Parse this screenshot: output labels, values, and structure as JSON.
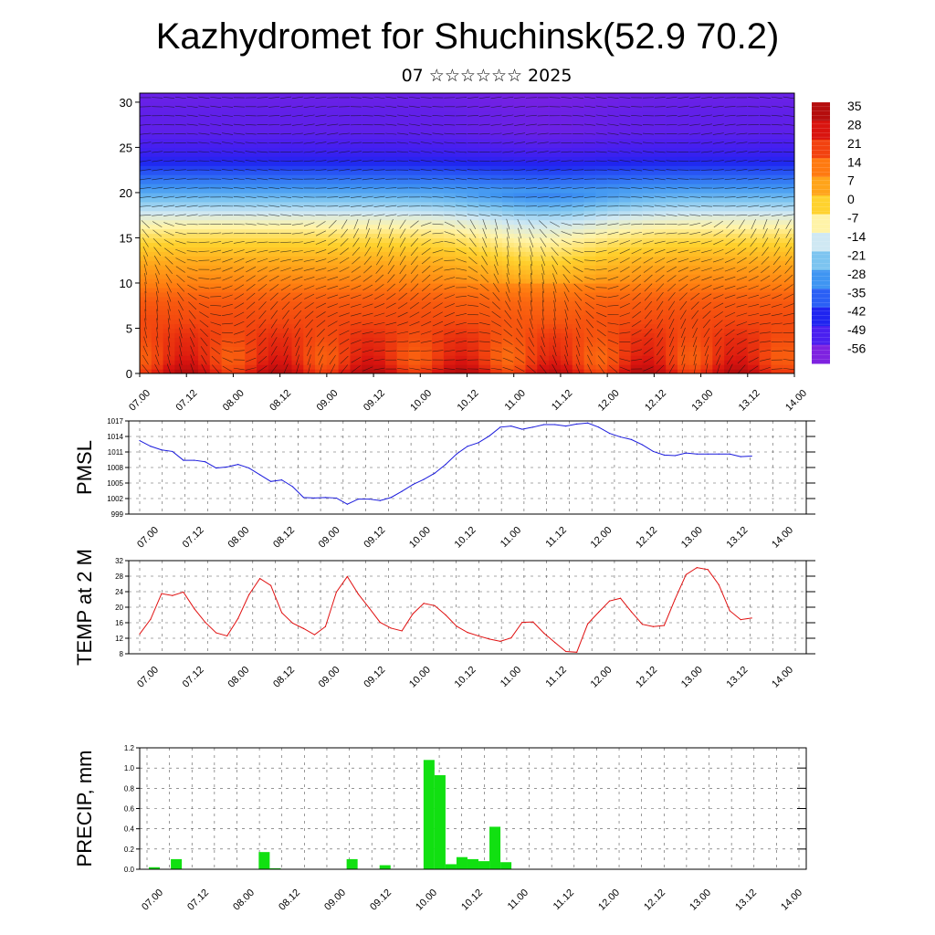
{
  "title": "Kazhydromet for Shuchinsk(52.9 70.2)",
  "subtitle": "07 ☆☆☆☆☆☆ 2025",
  "time_labels": [
    "07.00",
    "07.12",
    "08.00",
    "08.12",
    "09.00",
    "09.12",
    "10.00",
    "10.12",
    "11.00",
    "11.12",
    "12.00",
    "12.12",
    "13.00",
    "13.12",
    "14.00"
  ],
  "chart_data": [
    {
      "type": "heatmap",
      "description_of_axes": "time vs model level",
      "ylim": [
        0,
        31
      ],
      "y_ticks": [
        0,
        5,
        10,
        15,
        20,
        25,
        30
      ],
      "x_tick_labels": [
        "07.00",
        "07.12",
        "08.00",
        "08.12",
        "09.00",
        "09.12",
        "10.00",
        "10.12",
        "11.00",
        "11.12",
        "12.00",
        "12.12",
        "13.00",
        "13.12",
        "14.00"
      ],
      "colorbar_labels": [
        "35",
        "28",
        "21",
        "14",
        "7",
        "0",
        "-7",
        "-14",
        "-21",
        "-28",
        "-35",
        "-42",
        "-49",
        "-56"
      ],
      "colormap": [
        "#7e22e0",
        "#4a1ff0",
        "#1f24f0",
        "#2a5ff5",
        "#3f95f2",
        "#7cc4f0",
        "#cfe8f3",
        "#fff3a8",
        "#ffd22e",
        "#ffa41a",
        "#ff7a10",
        "#f2420f",
        "#d9140f",
        "#b50d0d"
      ],
      "color_scale_range": [
        -56,
        35
      ],
      "profile_by_level": [
        30,
        24,
        22,
        22,
        22,
        21,
        20,
        19,
        18,
        16,
        13,
        10,
        7,
        4,
        1,
        -2,
        -6,
        -10,
        -15,
        -20,
        -25,
        -30,
        -35,
        -40,
        -45,
        -48,
        -50,
        -52,
        -52,
        -52,
        -53
      ],
      "overlay": "wind barbs"
    },
    {
      "type": "line",
      "ylabel": "PMSL",
      "ylim": [
        999,
        1017
      ],
      "y_ticks": [
        999,
        1002,
        1005,
        1008,
        1011,
        1014,
        1017
      ],
      "x_tick_labels": [
        "07.00",
        "07.12",
        "08.00",
        "08.12",
        "09.00",
        "09.12",
        "10.00",
        "10.12",
        "11.00",
        "11.12",
        "12.00",
        "12.12",
        "13.00",
        "13.12",
        "14.00"
      ],
      "line_color": "#1a1adc",
      "x": [
        0,
        1,
        2,
        3,
        4,
        5,
        6,
        7,
        8,
        9,
        10,
        11,
        12,
        13,
        14,
        15,
        16,
        17,
        18,
        19,
        20,
        21,
        22,
        23,
        24,
        25,
        26,
        27,
        28,
        29,
        30,
        31,
        32,
        33,
        34,
        35,
        36,
        37,
        38,
        39,
        40,
        41,
        42,
        43,
        44,
        45,
        46,
        47,
        48,
        49,
        50,
        51,
        52,
        53,
        54,
        55,
        56
      ],
      "values": [
        1013.2,
        1012.1,
        1011.4,
        1011.1,
        1009.4,
        1009.4,
        1009.1,
        1007.9,
        1008.1,
        1008.6,
        1007.9,
        1006.6,
        1005.3,
        1005.6,
        1004.3,
        1002.2,
        1002.1,
        1002.2,
        1002.1,
        1000.9,
        1001.9,
        1001.9,
        1001.6,
        1002.2,
        1003.4,
        1004.7,
        1005.7,
        1006.9,
        1008.6,
        1010.6,
        1012.1,
        1012.8,
        1014.1,
        1015.8,
        1016.0,
        1015.4,
        1015.8,
        1016.3,
        1016.3,
        1016.0,
        1016.4,
        1016.6,
        1015.8,
        1014.6,
        1013.9,
        1013.4,
        1012.4,
        1011.1,
        1010.4,
        1010.3,
        1010.8,
        1010.6,
        1010.6,
        1010.6,
        1010.6,
        1010.1,
        1010.2
      ]
    },
    {
      "type": "line",
      "ylabel": "TEMP at 2 M",
      "ylim": [
        8,
        32
      ],
      "y_ticks": [
        8,
        12,
        16,
        20,
        24,
        28,
        32
      ],
      "x_tick_labels": [
        "07.00",
        "07.12",
        "08.00",
        "08.12",
        "09.00",
        "09.12",
        "10.00",
        "10.12",
        "11.00",
        "11.12",
        "12.00",
        "12.12",
        "13.00",
        "13.12",
        "14.00"
      ],
      "line_color": "#e01010",
      "x": [
        0,
        1,
        2,
        3,
        4,
        5,
        6,
        7,
        8,
        9,
        10,
        11,
        12,
        13,
        14,
        15,
        16,
        17,
        18,
        19,
        20,
        21,
        22,
        23,
        24,
        25,
        26,
        27,
        28,
        29,
        30,
        31,
        32,
        33,
        34,
        35,
        36,
        37,
        38,
        39,
        40,
        41,
        42,
        43,
        44,
        45,
        46,
        47,
        48,
        49,
        50,
        51,
        52,
        53,
        54,
        55,
        56
      ],
      "values": [
        13.1,
        16.9,
        23.5,
        23.0,
        23.9,
        19.6,
        16.1,
        13.4,
        12.6,
        17.1,
        23.2,
        27.4,
        25.6,
        18.6,
        15.9,
        14.5,
        12.9,
        15.0,
        23.9,
        27.9,
        23.4,
        19.8,
        16.1,
        14.6,
        13.9,
        18.3,
        21.0,
        20.4,
        18.0,
        15.1,
        13.5,
        12.6,
        11.8,
        11.2,
        12.1,
        16.1,
        16.2,
        13.3,
        10.9,
        8.6,
        8.4,
        15.7,
        18.7,
        21.6,
        22.3,
        18.8,
        15.6,
        15.0,
        15.3,
        22.1,
        28.4,
        30.2,
        29.7,
        25.8,
        19.1,
        16.8,
        17.2
      ]
    },
    {
      "type": "bar",
      "ylabel": "PRECIP, mm",
      "ylim": [
        0,
        1.2
      ],
      "y_ticks": [
        "0.0",
        "0.2",
        "0.4",
        "0.6",
        "0.8",
        "1.0",
        "1.2"
      ],
      "x_tick_labels": [
        "07.00",
        "07.12",
        "08.00",
        "08.12",
        "09.00",
        "09.12",
        "10.00",
        "10.12",
        "11.00",
        "11.12",
        "12.00",
        "12.12",
        "13.00",
        "13.12",
        "14.00"
      ],
      "bar_color": "#11e011",
      "x": [
        1,
        3,
        11,
        12,
        19,
        22,
        26,
        27,
        28,
        29,
        30,
        31,
        32,
        33,
        34
      ],
      "values": [
        0.02,
        0.1,
        0.17,
        0.01,
        0.1,
        0.04,
        1.08,
        0.93,
        0.05,
        0.12,
        0.1,
        0.08,
        0.42,
        0.07,
        0.0
      ]
    }
  ]
}
